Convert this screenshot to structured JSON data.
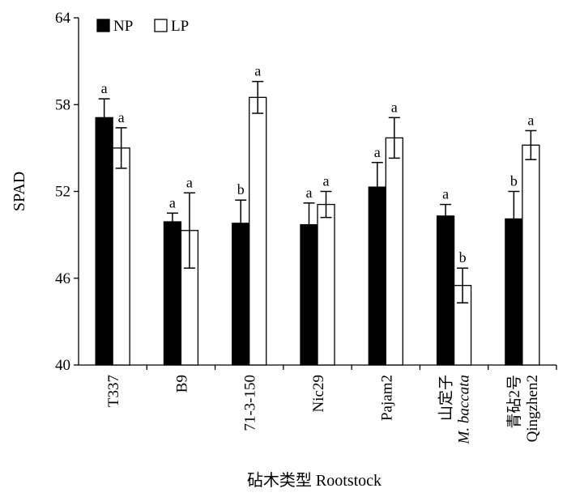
{
  "chart_data": {
    "type": "bar",
    "ylabel": "SPAD",
    "xlabel": "砧木类型 Rootstock",
    "ylim": [
      40,
      64
    ],
    "yticks": [
      40,
      46,
      52,
      58,
      64
    ],
    "legend_position": "top-left",
    "categories": [
      {
        "lines": [
          "T337"
        ],
        "italic": [
          false
        ]
      },
      {
        "lines": [
          "B9"
        ],
        "italic": [
          false
        ]
      },
      {
        "lines": [
          "71-3-150"
        ],
        "italic": [
          false
        ]
      },
      {
        "lines": [
          "Nic29"
        ],
        "italic": [
          false
        ]
      },
      {
        "lines": [
          "Pajam2"
        ],
        "italic": [
          false
        ]
      },
      {
        "lines": [
          "山定子",
          "M. baccata"
        ],
        "italic": [
          false,
          true
        ]
      },
      {
        "lines": [
          "青砧2号",
          "Qingzhen2"
        ],
        "italic": [
          false,
          false
        ]
      }
    ],
    "series": [
      {
        "name": "NP",
        "fill": "#000000",
        "values": [
          57.1,
          49.9,
          49.8,
          49.7,
          52.3,
          50.3,
          50.1
        ],
        "errors": [
          1.3,
          0.6,
          1.6,
          1.5,
          1.7,
          0.8,
          1.9
        ],
        "labels": [
          "a",
          "a",
          "b",
          "a",
          "a",
          "a",
          "b"
        ]
      },
      {
        "name": "LP",
        "fill": "#ffffff",
        "values": [
          55.0,
          49.3,
          58.5,
          51.1,
          55.7,
          45.5,
          55.2
        ],
        "errors": [
          1.4,
          2.6,
          1.1,
          0.9,
          1.4,
          1.2,
          1.0
        ],
        "labels": [
          "a",
          "a",
          "a",
          "a",
          "a",
          "b",
          "a"
        ]
      }
    ]
  }
}
